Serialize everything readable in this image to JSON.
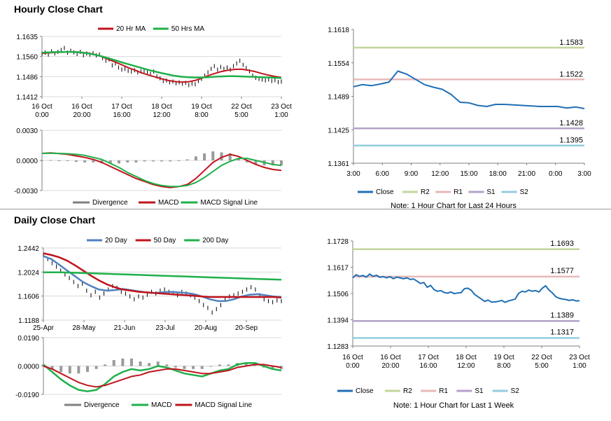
{
  "sections": {
    "hourly_title": "Hourly Close Chart",
    "daily_title": "Daily Close Chart"
  },
  "chart_data": [
    {
      "id": "hourly_price",
      "type": "line",
      "legend": [
        {
          "name": "20 Hr MA",
          "color": "#c0141c"
        },
        {
          "name": "50 Hrs MA",
          "color": "#1fb04a"
        }
      ],
      "yticks": [
        "1.1635",
        "1.1560",
        "1.1486",
        "1.1412"
      ],
      "ylim": [
        1.1412,
        1.1635
      ],
      "xticks": [
        [
          "16 Oct",
          "0:00"
        ],
        [
          "16 Oct",
          "20:00"
        ],
        [
          "17 Oct",
          "16:00"
        ],
        [
          "18 Oct",
          "12:00"
        ],
        [
          "19 Oct",
          "8:00"
        ],
        [
          "22 Oct",
          "5:00"
        ],
        [
          "23 Oct",
          "1:00"
        ]
      ],
      "series": [
        {
          "name": "Close",
          "color": "#000000",
          "values": [
            1.157,
            1.1575,
            1.1568,
            1.158,
            1.1572,
            1.1578,
            1.1585,
            1.1592,
            1.1575,
            1.1582,
            1.1576,
            1.157,
            1.1578,
            1.1565,
            1.1572,
            1.1568,
            1.1573,
            1.1565,
            1.1568,
            1.1555,
            1.1545,
            1.155,
            1.1528,
            1.1535,
            1.152,
            1.1512,
            1.1515,
            1.1508,
            1.1505,
            1.151,
            1.1502,
            1.1506,
            1.1508,
            1.1503,
            1.1496,
            1.1505,
            1.1487,
            1.148,
            1.147,
            1.1472,
            1.1465,
            1.1468,
            1.1462,
            1.1465,
            1.146,
            1.1463,
            1.1455,
            1.146,
            1.1458,
            1.147,
            1.1478,
            1.149,
            1.1502,
            1.1515,
            1.1525,
            1.1512,
            1.1522,
            1.1515,
            1.152,
            1.1512,
            1.1525,
            1.1535,
            1.1545,
            1.153,
            1.1518,
            1.1506,
            1.149,
            1.1482,
            1.1478,
            1.1475,
            1.1472,
            1.1476,
            1.147,
            1.1473,
            1.1466,
            1.1468
          ]
        },
        {
          "name": "20 Hr MA",
          "color": "#c0141c",
          "values": [
            1.1572,
            1.1574,
            1.1576,
            1.1577,
            1.1578,
            1.1578,
            1.1576,
            1.1573,
            1.1568,
            1.156,
            1.155,
            1.154,
            1.153,
            1.1519,
            1.151,
            1.15,
            1.1492,
            1.1485,
            1.1478,
            1.1472,
            1.1468,
            1.1466,
            1.1467,
            1.1472,
            1.148,
            1.149,
            1.1498,
            1.1505,
            1.151,
            1.1513,
            1.1514,
            1.151,
            1.1505,
            1.1498,
            1.1492,
            1.1487,
            1.1483
          ]
        },
        {
          "name": "50 Hrs MA",
          "color": "#1fb04a",
          "values": [
            1.1575,
            1.1576,
            1.1577,
            1.1577,
            1.1578,
            1.1577,
            1.1575,
            1.1572,
            1.1567,
            1.1561,
            1.1554,
            1.1547,
            1.1539,
            1.1532,
            1.1525,
            1.1518,
            1.1511,
            1.1505,
            1.1499,
            1.1494,
            1.1489,
            1.1486,
            1.1484,
            1.1483,
            1.1483,
            1.1484,
            1.1486,
            1.1487,
            1.1488,
            1.1488,
            1.1487,
            1.1486,
            1.1485,
            1.1484,
            1.1483,
            1.1482,
            1.1481
          ]
        }
      ]
    },
    {
      "id": "hourly_macd",
      "type": "line",
      "legend": [
        {
          "name": "Divergence",
          "color": "#808080"
        },
        {
          "name": "MACD",
          "color": "#c0141c"
        },
        {
          "name": "MACD Signal Line",
          "color": "#1fb04a"
        }
      ],
      "yticks": [
        "0.0030",
        "0.0000",
        "-0.0030"
      ],
      "ylim": [
        -0.003,
        0.003
      ],
      "series": [
        {
          "name": "MACD",
          "values": [
            0.0007,
            0.00075,
            0.00068,
            0.0006,
            0.00045,
            0.0003,
            0.0001,
            -0.0002,
            -0.0006,
            -0.001,
            -0.0014,
            -0.0018,
            -0.0021,
            -0.0024,
            -0.0026,
            -0.0027,
            -0.0026,
            -0.0024,
            -0.0018,
            -0.001,
            -0.0002,
            0.0003,
            0.0006,
            0.0004,
            0.0,
            -0.0004,
            -0.0007,
            -0.0009,
            -0.001
          ]
        },
        {
          "name": "MACD Signal Line",
          "values": [
            0.0007,
            0.00072,
            0.0007,
            0.00066,
            0.0006,
            0.0005,
            0.0003,
            0.0001,
            -0.0003,
            -0.0007,
            -0.0012,
            -0.0016,
            -0.002,
            -0.0023,
            -0.0025,
            -0.0026,
            -0.0026,
            -0.0025,
            -0.0022,
            -0.0017,
            -0.0011,
            -0.0005,
            -0.0001,
            0.0002,
            0.0002,
            0.0,
            -0.0002,
            -0.0004,
            -0.0005
          ]
        }
      ],
      "divergence": [
        0.0,
        3e-05,
        -2e-05,
        -6e-05,
        -0.00015,
        -0.0002,
        -0.0002,
        -0.0003,
        -0.0003,
        -0.0003,
        -0.0002,
        -0.0002,
        -0.0001,
        -0.0001,
        -0.0001,
        -0.0001,
        0.0,
        0.0001,
        0.0004,
        0.0007,
        0.0009,
        0.0008,
        0.0007,
        0.0002,
        -0.0002,
        -0.0004,
        -0.0005,
        -0.0005,
        -0.0005
      ]
    },
    {
      "id": "hourly_pivot",
      "type": "line",
      "legend": [
        {
          "name": "Close",
          "color": "#1f6fb4"
        },
        {
          "name": "R2",
          "color": "#c3d69b"
        },
        {
          "name": "R1",
          "color": "#e6b9b8"
        },
        {
          "name": "S1",
          "color": "#b3a2c7"
        },
        {
          "name": "S2",
          "color": "#93cddd"
        }
      ],
      "note": "Note: 1 Hour Chart for Last 24 Hours",
      "yticks": [
        "1.1618",
        "1.1554",
        "1.1489",
        "1.1425",
        "1.1361"
      ],
      "ylim": [
        1.1361,
        1.1618
      ],
      "xticks": [
        "3:00",
        "6:00",
        "9:00",
        "12:00",
        "15:00",
        "18:00",
        "21:00",
        "0:00",
        "3:00"
      ],
      "levels": [
        {
          "name": "R2",
          "value": 1.1583,
          "label": "1.1583",
          "color": "#c3d69b"
        },
        {
          "name": "R1",
          "value": 1.1522,
          "label": "1.1522",
          "color": "#e6b9b8"
        },
        {
          "name": "S1",
          "value": 1.1428,
          "label": "1.1428",
          "color": "#b3a2c7"
        },
        {
          "name": "S2",
          "value": 1.1395,
          "label": "1.1395",
          "color": "#93cddd"
        }
      ],
      "close": [
        1.1508,
        1.1512,
        1.151,
        1.1513,
        1.1517,
        1.1538,
        1.1532,
        1.1522,
        1.1512,
        1.1507,
        1.1503,
        1.1493,
        1.1478,
        1.1477,
        1.1472,
        1.147,
        1.1474,
        1.1474,
        1.1473,
        1.1472,
        1.1471,
        1.147,
        1.147,
        1.147,
        1.1467,
        1.1469,
        1.1466
      ]
    },
    {
      "id": "daily_price",
      "type": "line",
      "legend": [
        {
          "name": "20 Day",
          "color": "#4f81bd"
        },
        {
          "name": "50 Day",
          "color": "#c0141c"
        },
        {
          "name": "200 Day",
          "color": "#1fb04a"
        }
      ],
      "yticks": [
        "1.2442",
        "1.2024",
        "1.1606",
        "1.1188"
      ],
      "ylim": [
        1.1188,
        1.2442
      ],
      "xticks": [
        "25-Apr",
        "28-May",
        "21-Jun",
        "23-Jul",
        "20-Aug",
        "20-Sep"
      ],
      "series": [
        {
          "name": "Close",
          "color": "#000000",
          "values": [
            1.232,
            1.225,
            1.218,
            1.212,
            1.205,
            1.198,
            1.192,
            1.185,
            1.178,
            1.182,
            1.17,
            1.162,
            1.168,
            1.158,
            1.165,
            1.172,
            1.178,
            1.175,
            1.168,
            1.165,
            1.16,
            1.155,
            1.16,
            1.158,
            1.163,
            1.168,
            1.165,
            1.17,
            1.172,
            1.168,
            1.166,
            1.162,
            1.168,
            1.165,
            1.162,
            1.158,
            1.152,
            1.145,
            1.14,
            1.132,
            1.138,
            1.145,
            1.155,
            1.16,
            1.162,
            1.165,
            1.168,
            1.172,
            1.176,
            1.172,
            1.162,
            1.155,
            1.152,
            1.15,
            1.153,
            1.152
          ]
        },
        {
          "name": "20 Day",
          "color": "#4f81bd",
          "values": [
            1.23,
            1.225,
            1.215,
            1.205,
            1.195,
            1.185,
            1.178,
            1.172,
            1.17,
            1.171,
            1.173,
            1.171,
            1.169,
            1.167,
            1.166,
            1.167,
            1.168,
            1.167,
            1.166,
            1.164,
            1.16,
            1.155,
            1.152,
            1.152,
            1.155,
            1.16,
            1.163,
            1.164,
            1.162,
            1.16,
            1.159
          ]
        },
        {
          "name": "50 Day",
          "color": "#c0141c",
          "values": [
            1.235,
            1.232,
            1.228,
            1.222,
            1.214,
            1.205,
            1.196,
            1.188,
            1.181,
            1.176,
            1.172,
            1.17,
            1.168,
            1.167,
            1.166,
            1.165,
            1.164,
            1.163,
            1.162,
            1.161,
            1.16,
            1.159,
            1.159,
            1.159,
            1.159,
            1.159,
            1.159,
            1.159,
            1.159,
            1.159,
            1.158
          ]
        },
        {
          "name": "200 Day",
          "color": "#1fb04a",
          "values": [
            1.202,
            1.202,
            1.201,
            1.2,
            1.199,
            1.198,
            1.197,
            1.196,
            1.195,
            1.194,
            1.193,
            1.192,
            1.191,
            1.19,
            1.189
          ]
        }
      ]
    },
    {
      "id": "daily_macd",
      "type": "line",
      "legend": [
        {
          "name": "Divergence",
          "color": "#808080"
        },
        {
          "name": "MACD",
          "color": "#1fb04a"
        },
        {
          "name": "MACD Signal Line",
          "color": "#c0141c"
        }
      ],
      "yticks": [
        "0.0190",
        "0.0000",
        "-0.0190"
      ],
      "ylim": [
        -0.019,
        0.019
      ],
      "series": [
        {
          "name": "MACD",
          "values": [
            0.001,
            -0.004,
            -0.009,
            -0.013,
            -0.016,
            -0.017,
            -0.016,
            -0.012,
            -0.007,
            -0.004,
            -0.002,
            -0.003,
            -0.002,
            0.0,
            -0.001,
            -0.003,
            -0.005,
            -0.006,
            -0.007,
            -0.005,
            -0.003,
            -0.002,
            0.001,
            0.002,
            0.002,
            0.0,
            -0.002,
            -0.003
          ]
        },
        {
          "name": "MACD Signal Line",
          "values": [
            0.0,
            -0.002,
            -0.005,
            -0.008,
            -0.011,
            -0.013,
            -0.014,
            -0.013,
            -0.011,
            -0.009,
            -0.007,
            -0.006,
            -0.004,
            -0.003,
            -0.002,
            -0.002,
            -0.003,
            -0.004,
            -0.005,
            -0.005,
            -0.004,
            -0.003,
            -0.001,
            0.0,
            0.001,
            0.001,
            0.0,
            -0.001
          ]
        }
      ],
      "divergence": [
        0.001,
        -0.002,
        -0.004,
        -0.005,
        -0.005,
        -0.004,
        -0.002,
        0.001,
        0.004,
        0.005,
        0.005,
        0.003,
        0.002,
        0.003,
        0.001,
        -0.001,
        -0.002,
        -0.002,
        -0.002,
        0.0,
        0.001,
        0.001,
        0.002,
        0.002,
        0.001,
        -0.001,
        -0.002,
        -0.002
      ]
    },
    {
      "id": "daily_pivot",
      "type": "line",
      "legend": [
        {
          "name": "Close",
          "color": "#1f6fb4"
        },
        {
          "name": "R2",
          "color": "#c3d69b"
        },
        {
          "name": "R1",
          "color": "#e6b9b8"
        },
        {
          "name": "S1",
          "color": "#b3a2c7"
        },
        {
          "name": "S2",
          "color": "#93cddd"
        }
      ],
      "note": "Note: 1 Hour Chart for Last 1 Week",
      "yticks": [
        "1.1728",
        "1.1617",
        "1.1506",
        "1.1394",
        "1.1283"
      ],
      "ylim": [
        1.1283,
        1.1728
      ],
      "xticks": [
        [
          "16 Oct",
          "0:00"
        ],
        [
          "16 Oct",
          "20:00"
        ],
        [
          "17 Oct",
          "16:00"
        ],
        [
          "18 Oct",
          "12:00"
        ],
        [
          "19 Oct",
          "8:00"
        ],
        [
          "22 Oct",
          "5:00"
        ],
        [
          "23 Oct",
          "1:00"
        ]
      ],
      "levels": [
        {
          "name": "R2",
          "value": 1.1693,
          "label": "1.1693",
          "color": "#c3d69b"
        },
        {
          "name": "R1",
          "value": 1.1577,
          "label": "1.1577",
          "color": "#e6b9b8"
        },
        {
          "name": "S1",
          "value": 1.1389,
          "label": "1.1389",
          "color": "#b3a2c7"
        },
        {
          "name": "S2",
          "value": 1.1317,
          "label": "1.1317",
          "color": "#93cddd"
        }
      ],
      "close": [
        1.1572,
        1.1585,
        1.1578,
        1.1582,
        1.1575,
        1.1588,
        1.1578,
        1.1583,
        1.1574,
        1.1577,
        1.1572,
        1.1577,
        1.1568,
        1.1575,
        1.1572,
        1.1568,
        1.1572,
        1.1565,
        1.1567,
        1.1558,
        1.1548,
        1.1552,
        1.1532,
        1.154,
        1.1522,
        1.1515,
        1.1518,
        1.151,
        1.1507,
        1.1512,
        1.1505,
        1.1508,
        1.1509,
        1.1526,
        1.1528,
        1.1519,
        1.1502,
        1.1492,
        1.1482,
        1.1472,
        1.1478,
        1.1469,
        1.147,
        1.1472,
        1.1476,
        1.1468,
        1.1474,
        1.1478,
        1.1482,
        1.1506,
        1.1515,
        1.1512,
        1.152,
        1.1515,
        1.1518,
        1.1512,
        1.1528,
        1.1538,
        1.152,
        1.1508,
        1.1492,
        1.1485,
        1.1482,
        1.148,
        1.1476,
        1.1479,
        1.1474,
        1.1475
      ]
    }
  ]
}
